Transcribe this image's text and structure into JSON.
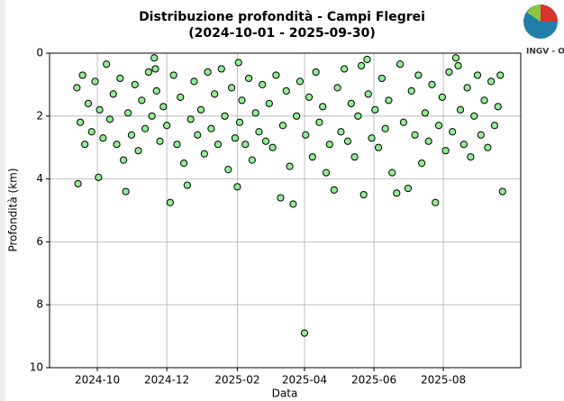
{
  "chart_data": {
    "type": "scatter",
    "title": "Distribuzione profondità - Campi Flegrei",
    "subtitle": "(2024-10-01 - 2025-09-30)",
    "x_label": "Data",
    "y_label": "Profondità (km)",
    "color": "#90ee90",
    "edge_color": "#000000",
    "grid": true,
    "invert_y": true,
    "xlim": [
      "2024-08-20",
      "2025-10-08"
    ],
    "xticks": [
      {
        "value": "2024-10-01",
        "label": "2024-10"
      },
      {
        "value": "2024-12-01",
        "label": "2024-12"
      },
      {
        "value": "2025-02-01",
        "label": "2025-02"
      },
      {
        "value": "2025-04-01",
        "label": "2025-04"
      },
      {
        "value": "2025-06-01",
        "label": "2025-06"
      },
      {
        "value": "2025-08-01",
        "label": "2025-08"
      }
    ],
    "ylim": [
      0,
      10
    ],
    "yticks": [
      0,
      2,
      4,
      6,
      8,
      10
    ],
    "x": [
      "2024-09-13",
      "2024-09-14",
      "2024-09-16",
      "2024-09-18",
      "2024-09-20",
      "2024-09-23",
      "2024-09-26",
      "2024-09-29",
      "2024-10-02",
      "2024-10-03",
      "2024-10-06",
      "2024-10-09",
      "2024-10-12",
      "2024-10-15",
      "2024-10-18",
      "2024-10-21",
      "2024-10-24",
      "2024-10-26",
      "2024-10-28",
      "2024-10-31",
      "2024-11-03",
      "2024-11-06",
      "2024-11-09",
      "2024-11-12",
      "2024-11-15",
      "2024-11-18",
      "2024-11-20",
      "2024-11-21",
      "2024-11-22",
      "2024-11-25",
      "2024-11-28",
      "2024-12-01",
      "2024-12-04",
      "2024-12-07",
      "2024-12-10",
      "2024-12-13",
      "2024-12-16",
      "2024-12-19",
      "2024-12-22",
      "2024-12-25",
      "2024-12-28",
      "2024-12-31",
      "2025-01-03",
      "2025-01-06",
      "2025-01-09",
      "2025-01-12",
      "2025-01-15",
      "2025-01-18",
      "2025-01-21",
      "2025-01-24",
      "2025-01-27",
      "2025-01-30",
      "2025-02-01",
      "2025-02-02",
      "2025-02-03",
      "2025-02-05",
      "2025-02-08",
      "2025-02-11",
      "2025-02-14",
      "2025-02-17",
      "2025-02-20",
      "2025-02-23",
      "2025-02-26",
      "2025-03-01",
      "2025-03-04",
      "2025-03-07",
      "2025-03-11",
      "2025-03-13",
      "2025-03-16",
      "2025-03-19",
      "2025-03-22",
      "2025-03-25",
      "2025-03-28",
      "2025-04-01",
      "2025-04-02",
      "2025-04-05",
      "2025-04-08",
      "2025-04-11",
      "2025-04-14",
      "2025-04-17",
      "2025-04-20",
      "2025-04-23",
      "2025-04-27",
      "2025-04-30",
      "2025-05-03",
      "2025-05-06",
      "2025-05-09",
      "2025-05-12",
      "2025-05-15",
      "2025-05-18",
      "2025-05-21",
      "2025-05-23",
      "2025-05-26",
      "2025-05-27",
      "2025-05-30",
      "2025-06-02",
      "2025-06-05",
      "2025-06-08",
      "2025-06-11",
      "2025-06-14",
      "2025-06-17",
      "2025-06-21",
      "2025-06-24",
      "2025-06-27",
      "2025-07-01",
      "2025-07-04",
      "2025-07-07",
      "2025-07-10",
      "2025-07-13",
      "2025-07-16",
      "2025-07-19",
      "2025-07-22",
      "2025-07-25",
      "2025-07-28",
      "2025-07-31",
      "2025-08-03",
      "2025-08-06",
      "2025-08-09",
      "2025-08-12",
      "2025-08-14",
      "2025-08-16",
      "2025-08-19",
      "2025-08-22",
      "2025-08-25",
      "2025-08-28",
      "2025-08-31",
      "2025-09-03",
      "2025-09-06",
      "2025-09-09",
      "2025-09-12",
      "2025-09-15",
      "2025-09-18",
      "2025-09-20",
      "2025-09-22"
    ],
    "values": [
      1.1,
      4.15,
      2.2,
      0.7,
      2.9,
      1.6,
      2.5,
      0.9,
      3.95,
      1.8,
      2.7,
      0.35,
      2.1,
      1.3,
      2.9,
      0.8,
      3.4,
      4.4,
      1.9,
      2.6,
      1.0,
      3.1,
      1.5,
      2.4,
      0.6,
      2.0,
      0.15,
      0.5,
      1.2,
      2.8,
      1.7,
      2.3,
      4.75,
      0.7,
      2.9,
      1.4,
      3.5,
      4.2,
      2.1,
      0.9,
      2.6,
      1.8,
      3.2,
      0.6,
      2.4,
      1.3,
      2.9,
      0.5,
      2.0,
      3.7,
      1.1,
      2.7,
      4.25,
      0.3,
      2.2,
      1.5,
      2.9,
      0.8,
      3.4,
      1.9,
      2.5,
      1.0,
      2.8,
      1.6,
      3.0,
      0.7,
      4.6,
      2.3,
      1.2,
      3.6,
      4.8,
      2.0,
      0.9,
      8.9,
      2.6,
      1.4,
      3.3,
      0.6,
      2.2,
      1.7,
      3.8,
      2.9,
      4.35,
      1.1,
      2.5,
      0.5,
      2.8,
      1.6,
      3.3,
      2.0,
      0.4,
      4.5,
      0.2,
      1.3,
      2.7,
      1.8,
      3.0,
      0.8,
      2.4,
      1.5,
      3.8,
      4.45,
      0.35,
      2.2,
      4.3,
      1.2,
      2.6,
      0.7,
      3.5,
      1.9,
      2.8,
      1.0,
      4.75,
      2.3,
      1.4,
      3.1,
      0.6,
      2.5,
      0.15,
      0.4,
      1.8,
      2.9,
      1.1,
      3.3,
      2.0,
      0.7,
      2.6,
      1.5,
      3.0,
      0.9,
      2.3,
      1.7,
      0.7,
      4.4
    ]
  },
  "logo": {
    "text": "INGV - OV"
  }
}
